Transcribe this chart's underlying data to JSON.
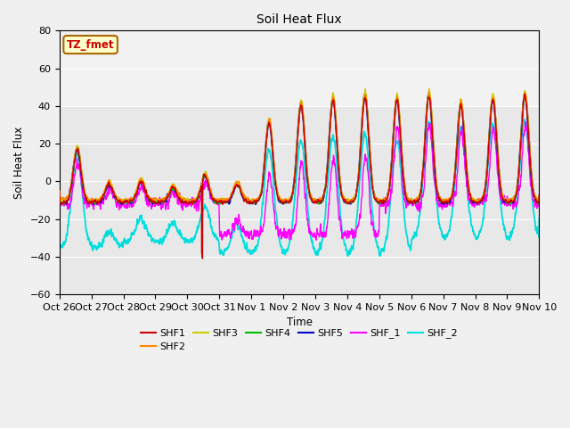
{
  "title": "Soil Heat Flux",
  "xlabel": "Time",
  "ylabel": "Soil Heat Flux",
  "ylim": [
    -60,
    80
  ],
  "n_days": 15,
  "background_color": "#f0f0f0",
  "plot_bg_color": "#e8e8e8",
  "annotation_text": "TZ_fmet",
  "annotation_bg": "#ffffcc",
  "annotation_border": "#aa6600",
  "annotation_text_color": "#cc0000",
  "tick_labels": [
    "Oct 26",
    "Oct 27",
    "Oct 28",
    "Oct 29",
    "Oct 30",
    "Oct 31",
    "Nov 1",
    "Nov 2",
    "Nov 3",
    "Nov 4",
    "Nov 5",
    "Nov 6",
    "Nov 7",
    "Nov 8",
    "Nov 9",
    "Nov 10"
  ],
  "line_colors": {
    "SHF1": "#cc0000",
    "SHF2": "#ff8800",
    "SHF3": "#cccc00",
    "SHF4": "#00bb00",
    "SHF5": "#0000cc",
    "SHF_1": "#ff00ff",
    "SHF_2": "#00dddd"
  },
  "yticks": [
    -60,
    -40,
    -20,
    0,
    20,
    40,
    60,
    80
  ],
  "grid_color": "#ffffff",
  "shaded_band": [
    40,
    80
  ]
}
